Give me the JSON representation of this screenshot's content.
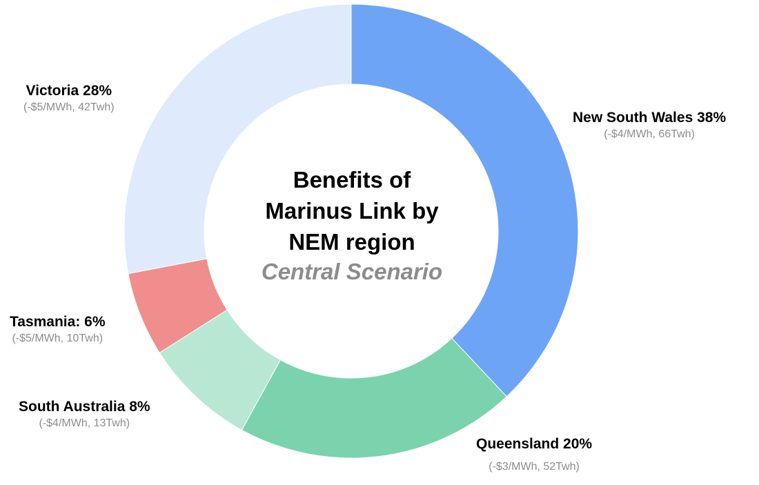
{
  "chart_data": {
    "type": "pie",
    "subtype": "donut",
    "title_lines": [
      "Benefits of",
      "Marinus Link by",
      "NEM region"
    ],
    "subtitle": "Central Scenario",
    "slices": [
      {
        "label": "New South Wales 38%",
        "detail": "(-$4/MWh, 66Twh)",
        "value": 38,
        "color": "#6ea4f5"
      },
      {
        "label": "Queensland 20%",
        "detail": "(-$3/MWh, 52Twh)",
        "value": 20,
        "color": "#7ad3ac"
      },
      {
        "label": "South Australia 8%",
        "detail": "(-$4/MWh, 13Twh)",
        "value": 8,
        "color": "#b8e8d4"
      },
      {
        "label": "Tasmania: 6%",
        "detail": "(-$5/MWh, 10Twh)",
        "value": 6,
        "color": "#ef8e8c"
      },
      {
        "label": "Victoria 28%",
        "detail": "(-$5/MWh, 42Twh)",
        "value": 28,
        "color": "#dfeafc"
      }
    ],
    "legend": "none"
  }
}
